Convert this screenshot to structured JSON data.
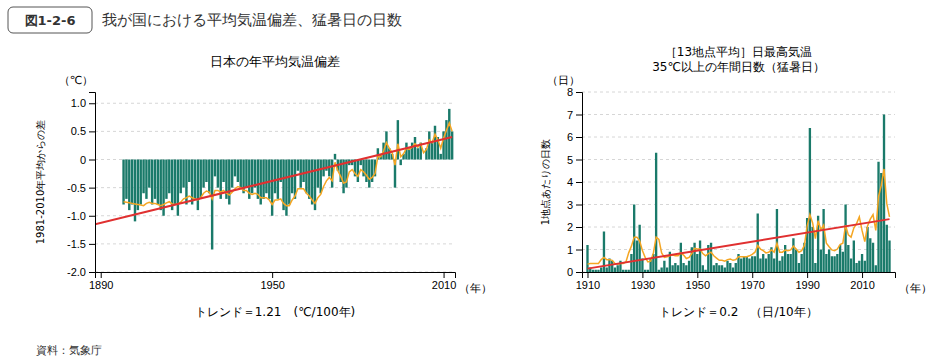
{
  "title": "我が国における平均気温偏差、猛暑日の日数",
  "annotations": [
    "図1-2-6",
    "資料：気象庁"
  ],
  "chart_data": [
    {
      "type": "bar",
      "title": "日本の年平均気温偏差",
      "xlabel": "（年）",
      "ylabel": "1981-2010年平均からの差",
      "annotations": [
        "（℃）",
        "トレンド＝1.21　(℃/100年)"
      ],
      "grid": true,
      "xlim": [
        1888,
        2014
      ],
      "xticks": [
        1890,
        1950,
        2010
      ],
      "ylim": [
        -2.0,
        1.2
      ],
      "yticks": [
        {
          "value": -2.0,
          "label": "-2.0"
        },
        -1.5,
        {
          "value": -1.0,
          "label": "-1.0"
        },
        -0.5,
        0,
        0.5,
        {
          "value": 1.0,
          "label": "1.0"
        }
      ],
      "x": [
        1898,
        1899,
        1900,
        1901,
        1902,
        1903,
        1904,
        1905,
        1906,
        1907,
        1908,
        1909,
        1910,
        1911,
        1912,
        1913,
        1914,
        1915,
        1916,
        1917,
        1918,
        1919,
        1920,
        1921,
        1922,
        1923,
        1924,
        1925,
        1926,
        1927,
        1928,
        1929,
        1930,
        1931,
        1932,
        1933,
        1934,
        1935,
        1936,
        1937,
        1938,
        1939,
        1940,
        1941,
        1942,
        1943,
        1944,
        1945,
        1946,
        1947,
        1948,
        1949,
        1950,
        1951,
        1952,
        1953,
        1954,
        1955,
        1956,
        1957,
        1958,
        1959,
        1960,
        1961,
        1962,
        1963,
        1964,
        1965,
        1966,
        1967,
        1968,
        1969,
        1970,
        1971,
        1972,
        1973,
        1974,
        1975,
        1976,
        1977,
        1978,
        1979,
        1980,
        1981,
        1982,
        1983,
        1984,
        1985,
        1986,
        1987,
        1988,
        1989,
        1990,
        1991,
        1992,
        1993,
        1994,
        1995,
        1996,
        1997,
        1998,
        1999,
        2000,
        2001,
        2002,
        2003,
        2004,
        2005,
        2006,
        2007,
        2008,
        2009,
        2010,
        2011,
        2012,
        2013
      ],
      "series": [
        {
          "type": "bar",
          "color": "#1a7a6a",
          "values": [
            -0.8,
            -0.7,
            -0.9,
            -0.8,
            -1.1,
            -0.9,
            -0.8,
            -0.6,
            -0.7,
            -0.5,
            -0.8,
            -0.7,
            -0.8,
            -0.9,
            -1.0,
            -0.7,
            -0.6,
            -0.9,
            -0.8,
            -1.0,
            -0.6,
            -0.5,
            -0.8,
            -0.4,
            -0.8,
            -0.7,
            -0.9,
            -0.7,
            -0.5,
            -0.4,
            -0.6,
            -1.6,
            -0.3,
            -0.5,
            -0.7,
            -0.4,
            -0.7,
            -0.8,
            -0.5,
            -0.3,
            -0.4,
            -0.5,
            -0.6,
            -0.5,
            -0.7,
            -0.6,
            -0.5,
            -0.7,
            -0.8,
            -0.7,
            -0.6,
            -0.7,
            -1.0,
            -0.6,
            -0.7,
            -0.4,
            -0.9,
            -1.0,
            -0.8,
            -0.6,
            -0.7,
            -0.2,
            -0.5,
            -0.4,
            -0.6,
            -0.7,
            -0.8,
            -0.9,
            -0.5,
            -0.6,
            -0.3,
            -0.2,
            -0.3,
            -0.5,
            0.1,
            -0.2,
            -0.4,
            -0.6,
            -0.5,
            -0.1,
            -0.1,
            -0.3,
            -0.4,
            -0.1,
            -0.3,
            -0.4,
            -0.5,
            -0.4,
            -0.3,
            0.2,
            0.1,
            0.3,
            0.5,
            0.2,
            0.1,
            -0.5,
            0.7,
            -0.1,
            0.1,
            0.3,
            0.2,
            0.3,
            0.4,
            0.2,
            0.3,
            0.0,
            0.2,
            0.5,
            0.3,
            0.6,
            0.4,
            0.1,
            0.5,
            0.7,
            0.9,
            0.5
          ]
        },
        {
          "type": "line",
          "color": "#f5a623",
          "values": [
            -0.75,
            -0.76,
            -0.77,
            -0.78,
            -0.79,
            -0.8,
            -0.81,
            -0.82,
            -0.78,
            -0.76,
            -0.78,
            -0.78,
            -0.8,
            -0.82,
            -0.8,
            -0.77,
            -0.75,
            -0.79,
            -0.8,
            -0.79,
            -0.76,
            -0.7,
            -0.68,
            -0.65,
            -0.68,
            -0.7,
            -0.72,
            -0.68,
            -0.6,
            -0.56,
            -0.58,
            -0.7,
            -0.55,
            -0.55,
            -0.58,
            -0.55,
            -0.6,
            -0.63,
            -0.58,
            -0.52,
            -0.48,
            -0.5,
            -0.55,
            -0.55,
            -0.6,
            -0.62,
            -0.6,
            -0.62,
            -0.68,
            -0.68,
            -0.68,
            -0.72,
            -0.8,
            -0.72,
            -0.72,
            -0.7,
            -0.78,
            -0.82,
            -0.82,
            -0.72,
            -0.65,
            -0.52,
            -0.52,
            -0.52,
            -0.6,
            -0.65,
            -0.72,
            -0.78,
            -0.68,
            -0.62,
            -0.48,
            -0.38,
            -0.32,
            -0.38,
            -0.05,
            -0.2,
            -0.3,
            -0.42,
            -0.4,
            -0.22,
            -0.18,
            -0.25,
            -0.3,
            -0.18,
            -0.22,
            -0.28,
            -0.35,
            -0.32,
            -0.25,
            0.05,
            0.05,
            0.15,
            0.3,
            0.2,
            0.12,
            -0.1,
            0.28,
            0.05,
            0.1,
            0.2,
            0.18,
            0.22,
            0.28,
            0.22,
            0.28,
            0.12,
            0.18,
            0.35,
            0.3,
            0.45,
            0.35,
            0.2,
            0.38,
            0.52,
            0.65,
            0.5
          ]
        },
        {
          "type": "line",
          "color": "#e03030",
          "x": [
            1888,
            2013
          ],
          "values": [
            -1.15,
            0.4
          ]
        }
      ]
    },
    {
      "type": "bar",
      "title": "［13地点平均］日最高気温",
      "subtitle": "35℃以上の年間日数（猛暑日）",
      "xlabel": "（年）",
      "ylabel": "1地点あたりの日数",
      "annotations": [
        "（日）",
        "トレンド＝0.2　（日/10年）"
      ],
      "grid": true,
      "xlim": [
        1908,
        2022
      ],
      "xticks": [
        1910,
        1930,
        1950,
        1970,
        1990,
        2010
      ],
      "ylim": [
        0,
        8
      ],
      "yticks": [
        0,
        1,
        2,
        3,
        4,
        5,
        6,
        7,
        8
      ],
      "x": [
        1910,
        1911,
        1912,
        1913,
        1914,
        1915,
        1916,
        1917,
        1918,
        1919,
        1920,
        1921,
        1922,
        1923,
        1924,
        1925,
        1926,
        1927,
        1928,
        1929,
        1930,
        1931,
        1932,
        1933,
        1934,
        1935,
        1936,
        1937,
        1938,
        1939,
        1940,
        1941,
        1942,
        1943,
        1944,
        1945,
        1946,
        1947,
        1948,
        1949,
        1950,
        1951,
        1952,
        1953,
        1954,
        1955,
        1956,
        1957,
        1958,
        1959,
        1960,
        1961,
        1962,
        1963,
        1964,
        1965,
        1966,
        1967,
        1968,
        1969,
        1970,
        1971,
        1972,
        1973,
        1974,
        1975,
        1976,
        1977,
        1978,
        1979,
        1980,
        1981,
        1982,
        1983,
        1984,
        1985,
        1986,
        1987,
        1988,
        1989,
        1990,
        1991,
        1992,
        1993,
        1994,
        1995,
        1996,
        1997,
        1998,
        1999,
        2000,
        2001,
        2002,
        2003,
        2004,
        2005,
        2006,
        2007,
        2008,
        2009,
        2010,
        2011,
        2012,
        2013,
        2014,
        2015,
        2016,
        2017,
        2018,
        2019,
        2020
      ],
      "series": [
        {
          "type": "bar",
          "color": "#1a7a6a",
          "values": [
            1.2,
            0.2,
            0.1,
            0.1,
            0.1,
            0.2,
            1.8,
            0.2,
            0.6,
            0.5,
            0.2,
            0.3,
            0.5,
            0.1,
            0.1,
            0.1,
            0.8,
            3.0,
            1.4,
            2.1,
            0.6,
            0.1,
            0.1,
            0.6,
            0.8,
            5.3,
            0.1,
            0.2,
            0.5,
            0.2,
            0.9,
            0.3,
            0.4,
            0.3,
            1.3,
            0.4,
            0.3,
            0.5,
            1.1,
            1.3,
            0.8,
            1.4,
            0.3,
            0.1,
            1.2,
            1.3,
            0.3,
            0.4,
            0.3,
            0.3,
            0.2,
            0.5,
            0.4,
            0.2,
            0.4,
            0.8,
            0.6,
            0.7,
            0.7,
            0.6,
            0.7,
            0.7,
            2.6,
            0.6,
            0.8,
            0.6,
            0.8,
            1.1,
            0.6,
            2.8,
            0.5,
            0.7,
            1.2,
            0.8,
            0.8,
            1.5,
            1.0,
            0.4,
            0.8,
            1.3,
            2.4,
            6.4,
            2.0,
            0.4,
            2.5,
            1.0,
            2.8,
            0.8,
            1.0,
            0.7,
            0.7,
            0.8,
            1.2,
            0.9,
            3.0,
            1.2,
            0.6,
            1.4,
            0.4,
            0.5,
            0.8,
            0.5,
            2.0,
            1.5,
            1.3,
            0.3,
            4.9,
            4.4,
            7.0,
            2.1,
            1.4
          ]
        },
        {
          "type": "line",
          "color": "#f5a623",
          "values": [
            0.35,
            0.38,
            0.38,
            0.38,
            0.38,
            0.55,
            0.65,
            0.55,
            0.55,
            0.52,
            0.38,
            0.35,
            0.38,
            0.38,
            0.45,
            0.85,
            1.15,
            1.55,
            1.55,
            1.38,
            0.95,
            0.65,
            0.45,
            0.48,
            0.85,
            1.55,
            1.45,
            0.85,
            0.65,
            0.68,
            0.72,
            0.75,
            0.72,
            0.72,
            0.85,
            0.75,
            0.6,
            0.65,
            0.82,
            1.05,
            1.02,
            1.02,
            0.82,
            0.72,
            0.82,
            0.88,
            0.72,
            0.62,
            0.52,
            0.52,
            0.48,
            0.55,
            0.58,
            0.52,
            0.55,
            0.68,
            0.68,
            0.68,
            0.68,
            0.72,
            0.78,
            0.88,
            1.18,
            1.02,
            0.95,
            0.85,
            0.88,
            0.98,
            0.88,
            1.28,
            0.88,
            0.88,
            0.98,
            0.95,
            0.98,
            1.15,
            1.02,
            0.88,
            0.95,
            1.18,
            2.05,
            2.55,
            2.18,
            1.48,
            2.28,
            1.88,
            2.08,
            1.28,
            1.12,
            0.98,
            0.95,
            1.02,
            1.22,
            1.28,
            2.08,
            1.65,
            1.55,
            1.95,
            2.15,
            2.45,
            1.85,
            1.35,
            2.05,
            2.35,
            2.55,
            1.85,
            3.35,
            3.85,
            4.58,
            3.05,
            2.45
          ]
        },
        {
          "type": "line",
          "color": "#e03030",
          "x": [
            1910,
            2020
          ],
          "values": [
            0.15,
            2.35
          ]
        }
      ]
    }
  ]
}
